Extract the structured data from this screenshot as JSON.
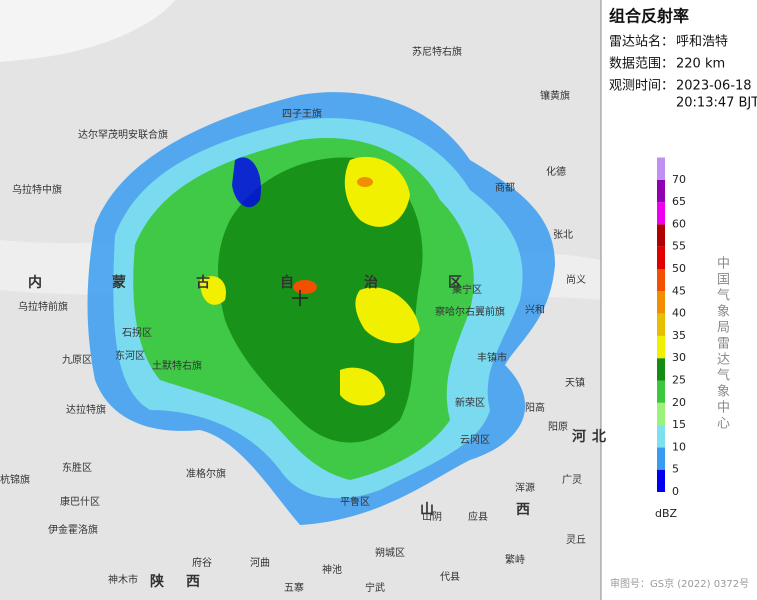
{
  "panel": {
    "title": "组合反射率",
    "info": [
      {
        "label": "雷达站名：",
        "values": [
          "呼和浩特"
        ]
      },
      {
        "label": "数据范围：",
        "values": [
          "220 km"
        ]
      },
      {
        "label": "观测时间：",
        "values": [
          "2023-06-18",
          "20:13:47 BJT"
        ]
      }
    ],
    "legend": {
      "ticks": [
        0,
        5,
        10,
        15,
        20,
        25,
        30,
        35,
        40,
        45,
        50,
        55,
        60,
        65,
        70
      ],
      "colors": [
        "#0000f0",
        "#3a9cf0",
        "#7de0f0",
        "#9cf07c",
        "#3cc83c",
        "#148c14",
        "#f0f000",
        "#e6c000",
        "#f09000",
        "#f05000",
        "#e00000",
        "#b00000",
        "#f000f0",
        "#9000b0",
        "#c090f0"
      ],
      "unit": "dBZ"
    },
    "credit": "中国气象局雷达气象中心",
    "approval": "审图号：GS京 (2022) 0372号"
  },
  "map": {
    "regions": [
      "内蒙古自治区",
      "山西",
      "陕西",
      "河北"
    ],
    "labels": [
      "苏尼特右旗",
      "镶黄旗",
      "四子王旗",
      "达尔罕茂明安联合旗",
      "商都",
      "化德",
      "乌拉特中旗",
      "乌拉特前旗",
      "石拐区",
      "九原区",
      "东河区",
      "土默特右旗",
      "达拉特旗",
      "准格尔旗",
      "东胜区",
      "康巴什区",
      "伊金霍洛旗",
      "神木市",
      "府谷",
      "河曲",
      "五寨",
      "神池",
      "宁武",
      "朔城区",
      "山阴",
      "应县",
      "平鲁区",
      "云冈区",
      "新荣区",
      "阳高",
      "天镇",
      "丰镇市",
      "察哈尔右翼前旗",
      "集宁区",
      "兴和",
      "张北",
      "尚义",
      "阳原",
      "广灵",
      "浑源",
      "灵丘",
      "繁峙",
      "代县",
      "杭锦旗"
    ]
  }
}
